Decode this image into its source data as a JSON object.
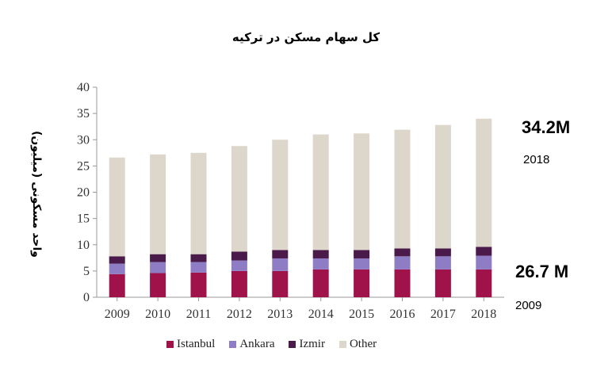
{
  "chart_data": {
    "type": "bar",
    "stacked": true,
    "title": "کل سهام مسکن در ترکیه",
    "ylabel": "واحد مسکونی (میلیون)",
    "xlabel": "",
    "categories": [
      "2009",
      "2010",
      "2011",
      "2012",
      "2013",
      "2014",
      "2015",
      "2016",
      "2017",
      "2018"
    ],
    "ylim": [
      0,
      40
    ],
    "yticks": [
      0,
      5,
      10,
      15,
      20,
      25,
      30,
      35,
      40
    ],
    "grid": false,
    "legend_position": "bottom",
    "series": [
      {
        "name": "Istanbul",
        "color": "#a0124a",
        "values": [
          4.4,
          4.6,
          4.7,
          5.0,
          5.0,
          5.3,
          5.3,
          5.3,
          5.3,
          5.3
        ]
      },
      {
        "name": "Ankara",
        "color": "#8e7dc4",
        "values": [
          2.0,
          2.1,
          2.0,
          2.0,
          2.4,
          2.1,
          2.1,
          2.5,
          2.5,
          2.6
        ]
      },
      {
        "name": "Izmir",
        "color": "#4a1a4a",
        "values": [
          1.4,
          1.5,
          1.5,
          1.7,
          1.6,
          1.6,
          1.6,
          1.5,
          1.5,
          1.7
        ]
      },
      {
        "name": "Other",
        "color": "#ddd7cb",
        "values": [
          18.8,
          19.0,
          19.3,
          20.1,
          21.0,
          22.0,
          22.2,
          22.6,
          23.5,
          24.4
        ]
      }
    ],
    "annotations": [
      {
        "label": "34.2M",
        "sub": "2018"
      },
      {
        "label": "26.7 M",
        "sub": "2009"
      }
    ]
  }
}
